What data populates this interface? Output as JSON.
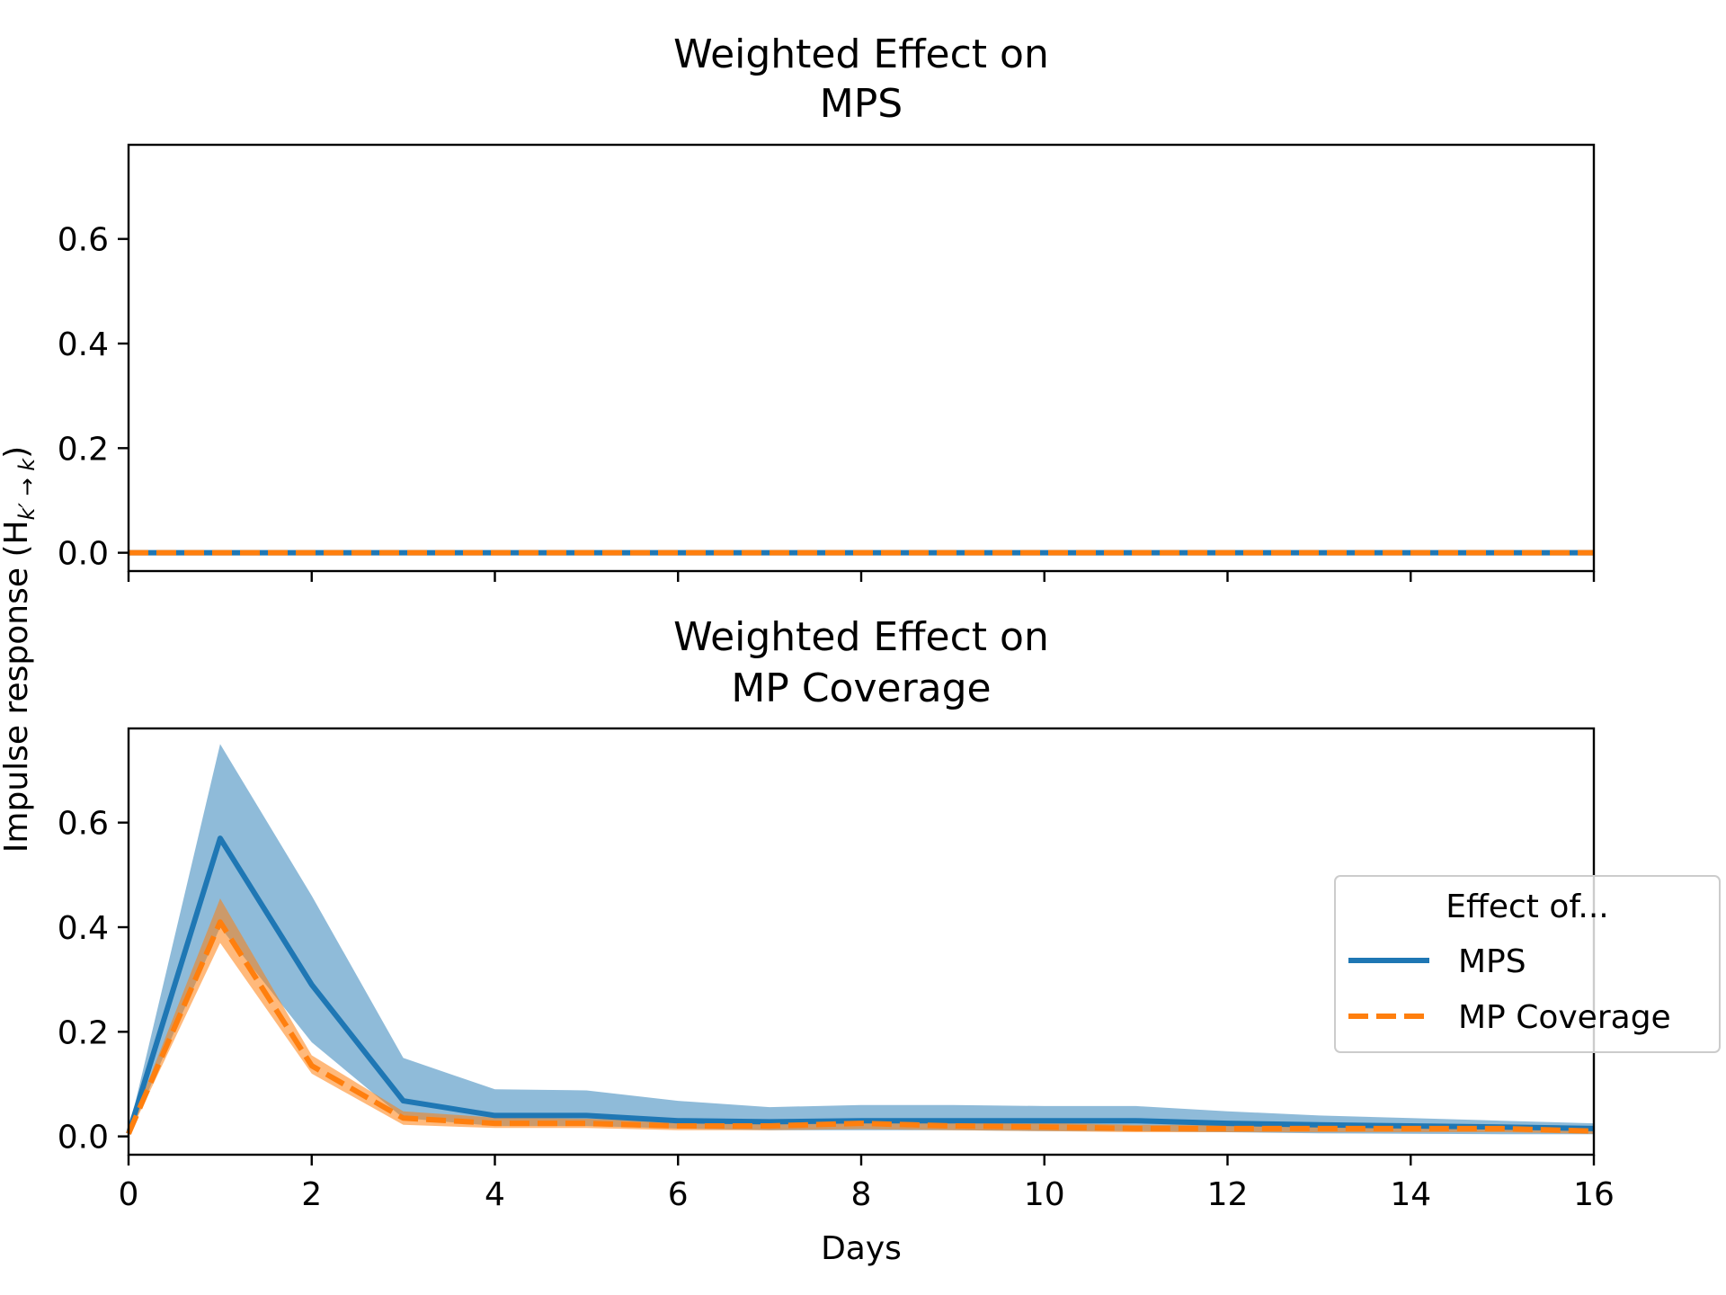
{
  "chart_data": {
    "type": "line",
    "x_ticks": [
      0,
      2,
      4,
      6,
      8,
      10,
      12,
      14,
      16
    ],
    "y_ticks": [
      0.0,
      0.2,
      0.4,
      0.6
    ],
    "x_tick_labels": [
      "0",
      "2",
      "4",
      "6",
      "8",
      "10",
      "12",
      "14",
      "16"
    ],
    "y_tick_labels": [
      "0.0",
      "0.2",
      "0.4",
      "0.6"
    ],
    "xlim": [
      0,
      16
    ],
    "ylim": [
      -0.035,
      0.78
    ],
    "xlabel": "Days",
    "ylabel": "Impulse response (H",
    "ylabel_sub": "k′ → k",
    "ylabel_end": ")",
    "grid": false,
    "legend": {
      "title": "Effect of...",
      "placement": "lower-right",
      "entries": [
        "MPS",
        "MP Coverage"
      ]
    },
    "colors": {
      "MPS": "#1f77b4",
      "MP Coverage": "#ff7f0e"
    },
    "subplots": [
      {
        "title_line1": "Weighted Effect on",
        "title_line2": "MPS",
        "x": [
          0,
          1,
          2,
          3,
          4,
          5,
          6,
          7,
          8,
          9,
          10,
          11,
          12,
          13,
          14,
          15,
          16
        ],
        "series": [
          {
            "name": "MPS",
            "style": "solid",
            "values": [
              0,
              0,
              0,
              0,
              0,
              0,
              0,
              0,
              0,
              0,
              0,
              0,
              0,
              0,
              0,
              0,
              0
            ],
            "lower": [
              0,
              0,
              0,
              0,
              0,
              0,
              0,
              0,
              0,
              0,
              0,
              0,
              0,
              0,
              0,
              0,
              0
            ],
            "upper": [
              0,
              0,
              0,
              0,
              0,
              0,
              0,
              0,
              0,
              0,
              0,
              0,
              0,
              0,
              0,
              0,
              0
            ]
          },
          {
            "name": "MP Coverage",
            "style": "dashed",
            "values": [
              0,
              0,
              0,
              0,
              0,
              0,
              0,
              0,
              0,
              0,
              0,
              0,
              0,
              0,
              0,
              0,
              0
            ],
            "lower": [
              0,
              0,
              0,
              0,
              0,
              0,
              0,
              0,
              0,
              0,
              0,
              0,
              0,
              0,
              0,
              0,
              0
            ],
            "upper": [
              0,
              0,
              0,
              0,
              0,
              0,
              0,
              0,
              0,
              0,
              0,
              0,
              0,
              0,
              0,
              0,
              0
            ]
          }
        ]
      },
      {
        "title_line1": "Weighted Effect on",
        "title_line2": "MP Coverage",
        "x": [
          0,
          1,
          2,
          3,
          4,
          5,
          6,
          7,
          8,
          9,
          10,
          11,
          12,
          13,
          14,
          15,
          16
        ],
        "series": [
          {
            "name": "MPS",
            "style": "solid",
            "values": [
              0.005,
              0.57,
              0.29,
              0.068,
              0.04,
              0.04,
              0.03,
              0.028,
              0.03,
              0.03,
              0.03,
              0.03,
              0.025,
              0.022,
              0.02,
              0.018,
              0.015
            ],
            "lower": [
              0.0,
              0.4,
              0.18,
              0.035,
              0.02,
              0.02,
              0.015,
              0.012,
              0.012,
              0.012,
              0.01,
              0.01,
              0.008,
              0.006,
              0.005,
              0.004,
              0.004
            ],
            "upper": [
              0.01,
              0.75,
              0.46,
              0.15,
              0.09,
              0.088,
              0.068,
              0.056,
              0.06,
              0.06,
              0.058,
              0.058,
              0.048,
              0.04,
              0.035,
              0.03,
              0.025
            ]
          },
          {
            "name": "MP Coverage",
            "style": "dashed",
            "values": [
              0.005,
              0.41,
              0.135,
              0.035,
              0.025,
              0.025,
              0.02,
              0.02,
              0.025,
              0.02,
              0.018,
              0.015,
              0.015,
              0.015,
              0.015,
              0.015,
              0.01
            ],
            "lower": [
              0.0,
              0.37,
              0.12,
              0.022,
              0.016,
              0.016,
              0.012,
              0.012,
              0.014,
              0.012,
              0.01,
              0.008,
              0.008,
              0.008,
              0.008,
              0.008,
              0.005
            ],
            "upper": [
              0.01,
              0.455,
              0.155,
              0.048,
              0.036,
              0.034,
              0.028,
              0.028,
              0.034,
              0.028,
              0.026,
              0.022,
              0.022,
              0.022,
              0.022,
              0.022,
              0.015
            ]
          }
        ]
      }
    ]
  }
}
